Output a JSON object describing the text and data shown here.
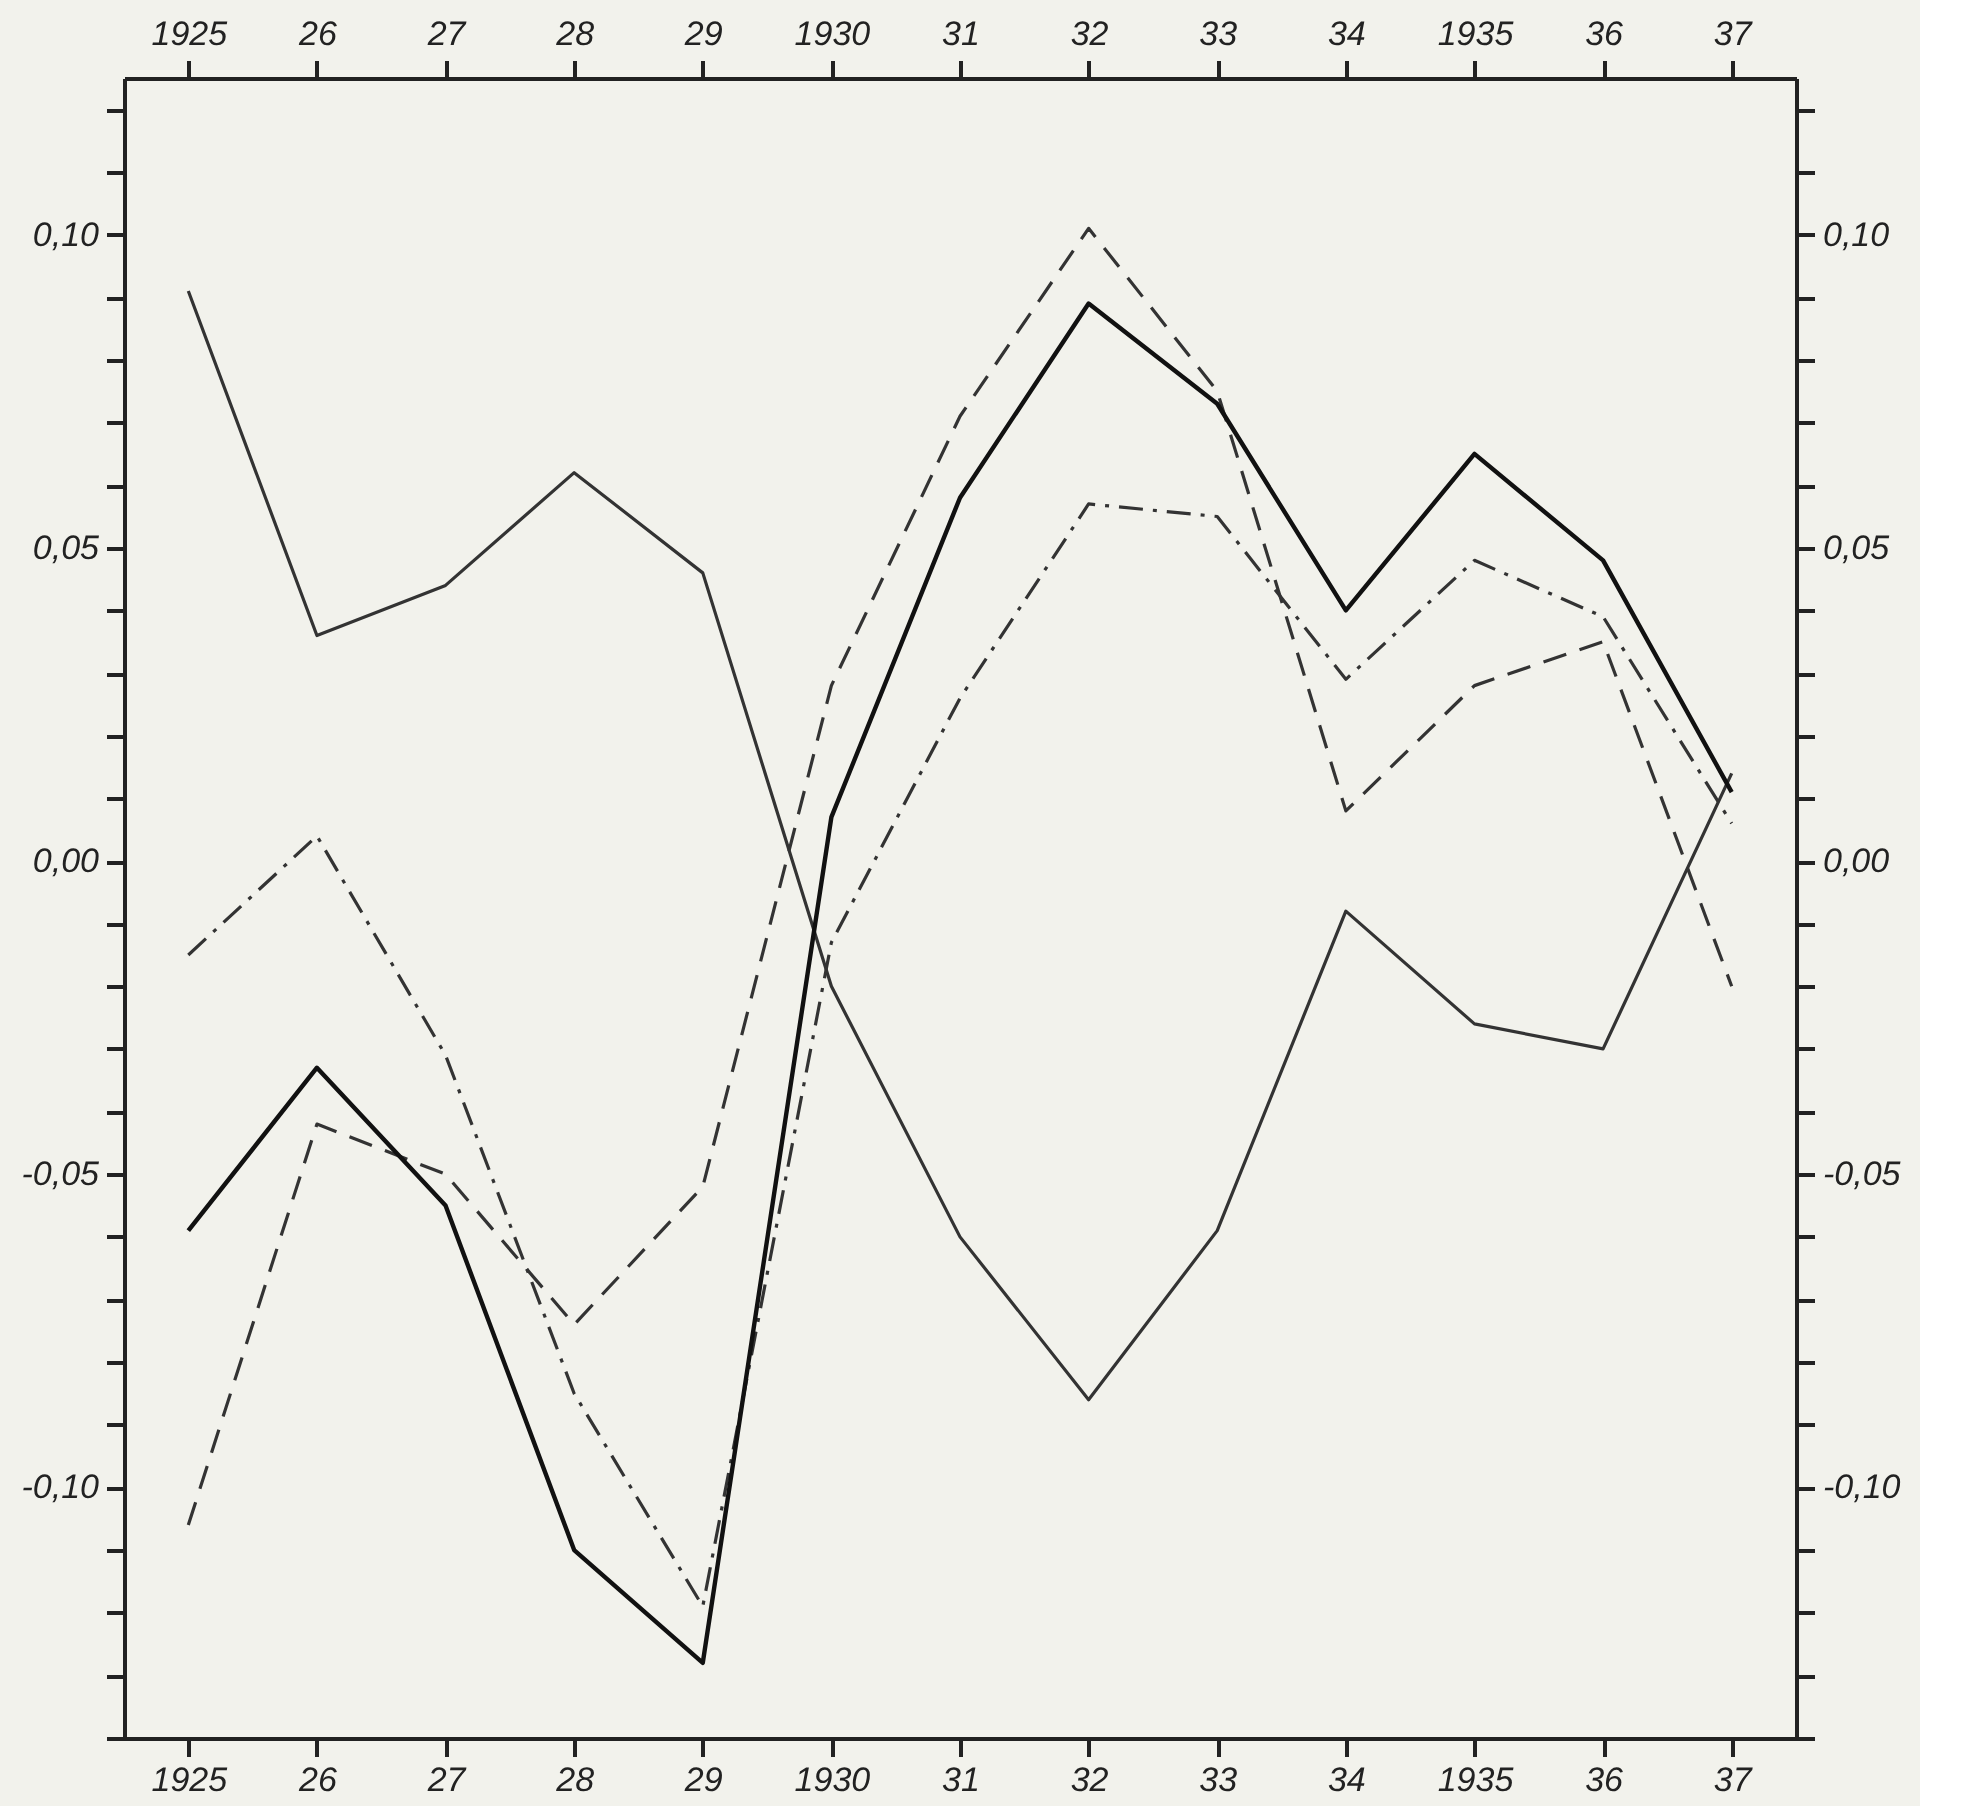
{
  "chart_data": {
    "type": "line",
    "x": [
      1925,
      1926,
      1927,
      1928,
      1929,
      1930,
      1931,
      1932,
      1933,
      1934,
      1935,
      1936,
      1937
    ],
    "series": [
      {
        "color": "#333333",
        "line_style": "solid",
        "values": [
          0.091,
          0.036,
          0.044,
          0.062,
          0.046,
          -0.02,
          -0.06,
          -0.086,
          -0.059,
          -0.008,
          -0.026,
          -0.03,
          0.014
        ]
      },
      {
        "color": "#111111",
        "line_style": "solid",
        "values": [
          -0.059,
          -0.033,
          -0.055,
          -0.11,
          -0.128,
          0.007,
          0.058,
          0.089,
          0.073,
          0.04,
          0.065,
          0.048,
          0.011
        ]
      },
      {
        "color": "#333333",
        "line_style": "dashed",
        "values": [
          -0.106,
          -0.042,
          -0.05,
          -0.074,
          -0.052,
          0.028,
          0.071,
          0.101,
          0.075,
          0.008,
          0.028,
          0.035,
          -0.02
        ]
      },
      {
        "color": "#333333",
        "line_style": "dashdot",
        "values": [
          -0.015,
          0.004,
          -0.031,
          -0.085,
          -0.119,
          -0.013,
          0.026,
          0.057,
          0.055,
          0.029,
          0.048,
          0.039,
          0.006
        ]
      }
    ],
    "xlim": [
      1924.5,
      1937.5
    ],
    "xticks": [
      {
        "value": 1925,
        "label": "1925"
      },
      {
        "value": 1926,
        "label": "26"
      },
      {
        "value": 1927,
        "label": "27"
      },
      {
        "value": 1928,
        "label": "28"
      },
      {
        "value": 1929,
        "label": "29"
      },
      {
        "value": 1930,
        "label": "1930"
      },
      {
        "value": 1931,
        "label": "31"
      },
      {
        "value": 1932,
        "label": "32"
      },
      {
        "value": 1933,
        "label": "33"
      },
      {
        "value": 1934,
        "label": "34"
      },
      {
        "value": 1935,
        "label": "1935"
      },
      {
        "value": 1936,
        "label": "36"
      },
      {
        "value": 1937,
        "label": "37"
      }
    ],
    "x2lim": [
      1924.5,
      1937.5
    ],
    "x2ticks": [
      {
        "value": 1925,
        "label": "1925"
      },
      {
        "value": 1926,
        "label": "26"
      },
      {
        "value": 1927,
        "label": "27"
      },
      {
        "value": 1928,
        "label": "28"
      },
      {
        "value": 1929,
        "label": "29"
      },
      {
        "value": 1930,
        "label": "1930"
      },
      {
        "value": 1931,
        "label": "31"
      },
      {
        "value": 1932,
        "label": "32"
      },
      {
        "value": 1933,
        "label": "33"
      },
      {
        "value": 1934,
        "label": "34"
      },
      {
        "value": 1935,
        "label": "1935"
      },
      {
        "value": 1936,
        "label": "36"
      },
      {
        "value": 1937,
        "label": "37"
      }
    ],
    "ylim": [
      -0.14,
      0.125
    ],
    "yticks": [
      {
        "value": -0.14,
        "label": null
      },
      {
        "value": -0.13,
        "label": null
      },
      {
        "value": -0.12,
        "label": null
      },
      {
        "value": -0.11,
        "label": null
      },
      {
        "value": -0.1,
        "label": "-0,10"
      },
      {
        "value": -0.09,
        "label": null
      },
      {
        "value": -0.08,
        "label": null
      },
      {
        "value": -0.07,
        "label": null
      },
      {
        "value": -0.06,
        "label": null
      },
      {
        "value": -0.05,
        "label": "-0,05"
      },
      {
        "value": -0.04,
        "label": null
      },
      {
        "value": -0.03,
        "label": null
      },
      {
        "value": -0.02,
        "label": null
      },
      {
        "value": -0.01,
        "label": null
      },
      {
        "value": 0.0,
        "label": "0,00"
      },
      {
        "value": 0.01,
        "label": null
      },
      {
        "value": 0.02,
        "label": null
      },
      {
        "value": 0.03,
        "label": null
      },
      {
        "value": 0.04,
        "label": null
      },
      {
        "value": 0.05,
        "label": "0,05"
      },
      {
        "value": 0.06,
        "label": null
      },
      {
        "value": 0.07,
        "label": null
      },
      {
        "value": 0.08,
        "label": null
      },
      {
        "value": 0.09,
        "label": null
      },
      {
        "value": 0.1,
        "label": "0,10"
      },
      {
        "value": 0.11,
        "label": null
      },
      {
        "value": 0.12,
        "label": null
      }
    ],
    "y2lim": [
      -0.14,
      0.125
    ],
    "y2ticks": [
      {
        "value": -0.14,
        "label": null
      },
      {
        "value": -0.13,
        "label": null
      },
      {
        "value": -0.12,
        "label": null
      },
      {
        "value": -0.11,
        "label": null
      },
      {
        "value": -0.1,
        "label": "-0,10"
      },
      {
        "value": -0.09,
        "label": null
      },
      {
        "value": -0.08,
        "label": null
      },
      {
        "value": -0.07,
        "label": null
      },
      {
        "value": -0.06,
        "label": null
      },
      {
        "value": -0.05,
        "label": "-0,05"
      },
      {
        "value": -0.04,
        "label": null
      },
      {
        "value": -0.03,
        "label": null
      },
      {
        "value": -0.02,
        "label": null
      },
      {
        "value": -0.01,
        "label": null
      },
      {
        "value": 0.0,
        "label": "0,00"
      },
      {
        "value": 0.01,
        "label": null
      },
      {
        "value": 0.02,
        "label": null
      },
      {
        "value": 0.03,
        "label": null
      },
      {
        "value": 0.04,
        "label": null
      },
      {
        "value": 0.05,
        "label": "0,05"
      },
      {
        "value": 0.06,
        "label": null
      },
      {
        "value": 0.07,
        "label": null
      },
      {
        "value": 0.08,
        "label": null
      },
      {
        "value": 0.09,
        "label": null
      },
      {
        "value": 0.1,
        "label": "0,10"
      },
      {
        "value": 0.11,
        "label": null
      },
      {
        "value": 0.12,
        "label": null
      }
    ],
    "grid": false
  }
}
